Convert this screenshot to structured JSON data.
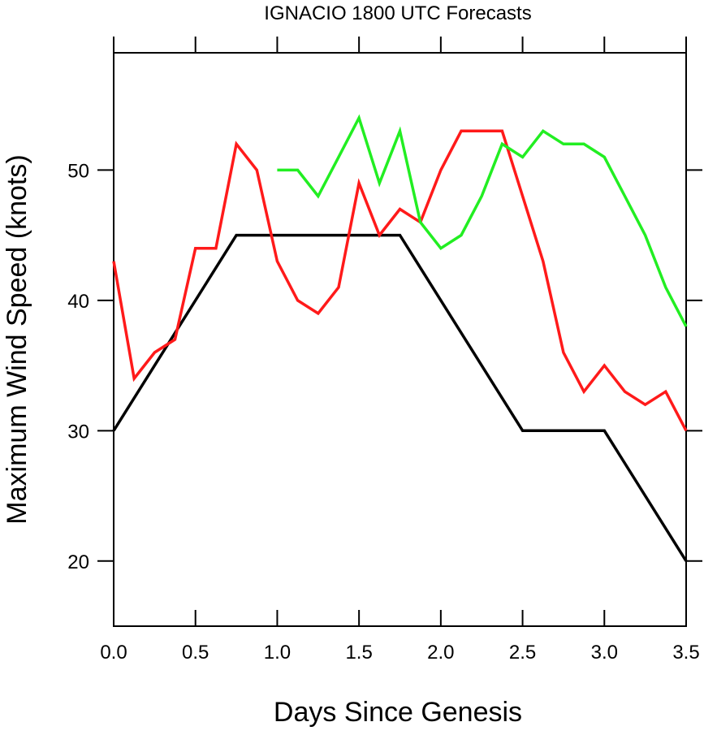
{
  "chart_data": {
    "type": "line",
    "title": "IGNACIO 1800 UTC Forecasts",
    "xlabel": "Days Since Genesis",
    "ylabel": "Maximum Wind Speed (knots)",
    "xlim": [
      0,
      3.5
    ],
    "ylim": [
      15,
      59
    ],
    "xticks": [
      "0.0",
      "0.5",
      "1.0",
      "1.5",
      "2.0",
      "2.5",
      "3.0",
      "3.5"
    ],
    "yticks": [
      "20",
      "30",
      "40",
      "50"
    ],
    "grid": false,
    "legend": "none",
    "series": [
      {
        "color": "#000000",
        "x": [
          0,
          0.75,
          1.75,
          2.5,
          3.0,
          3.5
        ],
        "y": [
          30,
          45,
          45,
          30,
          30,
          20
        ]
      },
      {
        "color": "#ff1a1a",
        "x": [
          0,
          0.125,
          0.25,
          0.375,
          0.5,
          0.625,
          0.75,
          0.875,
          1.0,
          1.125,
          1.25,
          1.375,
          1.5,
          1.625,
          1.75,
          1.875,
          2.0,
          2.125,
          2.25,
          2.375,
          2.5,
          2.625,
          2.75,
          2.875,
          3.0,
          3.125,
          3.25,
          3.375,
          3.5
        ],
        "y": [
          43,
          34,
          36,
          37,
          44,
          44,
          52,
          50,
          43,
          40,
          39,
          41,
          49,
          45,
          47,
          46,
          50,
          53,
          53,
          53,
          48,
          43,
          36,
          33,
          35,
          33,
          32,
          33,
          30
        ]
      },
      {
        "color": "#22ee22",
        "x": [
          1.0,
          1.125,
          1.25,
          1.375,
          1.5,
          1.625,
          1.75,
          1.875,
          2.0,
          2.125,
          2.25,
          2.375,
          2.5,
          2.625,
          2.75,
          2.875,
          3.0,
          3.125,
          3.25,
          3.375,
          3.5
        ],
        "y": [
          50,
          50,
          48,
          51,
          54,
          49,
          53,
          46,
          44,
          45,
          48,
          52,
          51,
          53,
          52,
          52,
          51,
          48,
          45,
          41,
          38
        ]
      }
    ]
  }
}
